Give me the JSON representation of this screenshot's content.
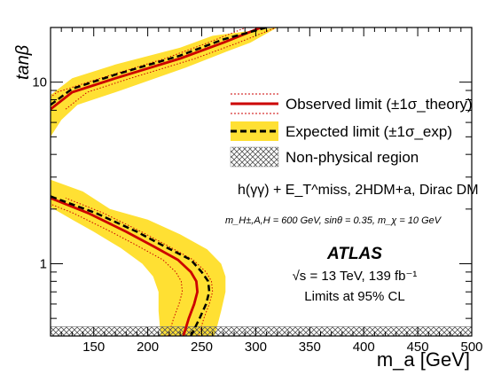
{
  "chart_data": {
    "type": "line",
    "xlabel": "m_a [GeV]",
    "ylabel": "tanβ",
    "xlim": [
      110,
      500
    ],
    "ylim": [
      0.4,
      20
    ],
    "yscale": "log",
    "xticks": [
      "150",
      "200",
      "250",
      "300",
      "350",
      "400",
      "450",
      "500"
    ],
    "yticks": [
      "1",
      "10"
    ],
    "legend": {
      "placement": "right",
      "entries": [
        "Observed limit (±1σ_theory)",
        "Expected limit (±1σ_exp)",
        "Non-physical region"
      ]
    },
    "annotations": {
      "model": "h(γγ) + E_T^miss, 2HDM+a, Dirac DM",
      "params": "m_H±,A,H = 600 GeV, sinθ = 0.35, m_χ = 10 GeV",
      "experiment": "ATLAS",
      "energy": "√s = 13 TeV, 139 fb⁻¹",
      "cl": "Limits at 95% CL"
    },
    "series": [
      {
        "name": "Observed limit",
        "color": "#cc0000",
        "style": "solid",
        "points": [
          [
            233,
            0.4
          ],
          [
            238,
            0.5
          ],
          [
            243,
            0.6
          ],
          [
            246,
            0.7
          ],
          [
            245,
            0.8
          ],
          [
            240,
            0.9
          ],
          [
            228,
            1.05
          ],
          [
            205,
            1.25
          ],
          [
            180,
            1.5
          ],
          [
            145,
            1.9
          ],
          [
            110,
            2.3
          ]
        ]
      },
      {
        "name": "Observed upper branch",
        "color": "#cc0000",
        "style": "solid",
        "points": [
          [
            110,
            7.1
          ],
          [
            130,
            8.8
          ],
          [
            170,
            10.5
          ],
          [
            230,
            13.5
          ],
          [
            270,
            16.5
          ],
          [
            305,
            20
          ]
        ]
      },
      {
        "name": "Expected limit",
        "color": "#000000",
        "style": "dashed",
        "points": [
          [
            240,
            0.4
          ],
          [
            248,
            0.5
          ],
          [
            254,
            0.6
          ],
          [
            257,
            0.7
          ],
          [
            256,
            0.8
          ],
          [
            250,
            0.9
          ],
          [
            240,
            1.05
          ],
          [
            215,
            1.25
          ],
          [
            190,
            1.5
          ],
          [
            152,
            1.9
          ],
          [
            110,
            2.35
          ]
        ]
      },
      {
        "name": "Expected upper branch",
        "color": "#000000",
        "style": "dashed",
        "points": [
          [
            110,
            7.5
          ],
          [
            130,
            9.2
          ],
          [
            170,
            11
          ],
          [
            230,
            14
          ],
          [
            270,
            17.2
          ],
          [
            310,
            20
          ]
        ]
      }
    ],
    "bands": [
      {
        "name": "Expected ±1σ_exp",
        "color": "#ffe033",
        "upper": [
          [
            110,
            2.9
          ],
          [
            140,
            2.5
          ],
          [
            165,
            2.0
          ],
          [
            200,
            1.75
          ],
          [
            230,
            1.45
          ],
          [
            255,
            1.2
          ],
          [
            268,
            1.0
          ],
          [
            272,
            0.85
          ],
          [
            272,
            0.7
          ],
          [
            268,
            0.55
          ],
          [
            262,
            0.4
          ]
        ],
        "lower": [
          [
            110,
            2.05
          ],
          [
            130,
            1.75
          ],
          [
            150,
            1.5
          ],
          [
            175,
            1.22
          ],
          [
            195,
            1.0
          ],
          [
            205,
            0.85
          ],
          [
            210,
            0.7
          ],
          [
            210,
            0.55
          ],
          [
            212,
            0.4
          ]
        ]
      },
      {
        "name": "Expected ±1σ_exp upper",
        "color": "#ffe033",
        "upper": [
          [
            110,
            8.5
          ],
          [
            130,
            10.5
          ],
          [
            170,
            12.5
          ],
          [
            230,
            15.5
          ],
          [
            260,
            18
          ],
          [
            320,
            20
          ]
        ],
        "lower": [
          [
            110,
            5.0
          ],
          [
            120,
            6.2
          ],
          [
            135,
            7.5
          ],
          [
            175,
            9.0
          ],
          [
            235,
            12.0
          ],
          [
            270,
            14.5
          ],
          [
            295,
            16.5
          ],
          [
            320,
            20
          ]
        ]
      }
    ],
    "nonphysical": {
      "ymax": 0.45
    }
  }
}
